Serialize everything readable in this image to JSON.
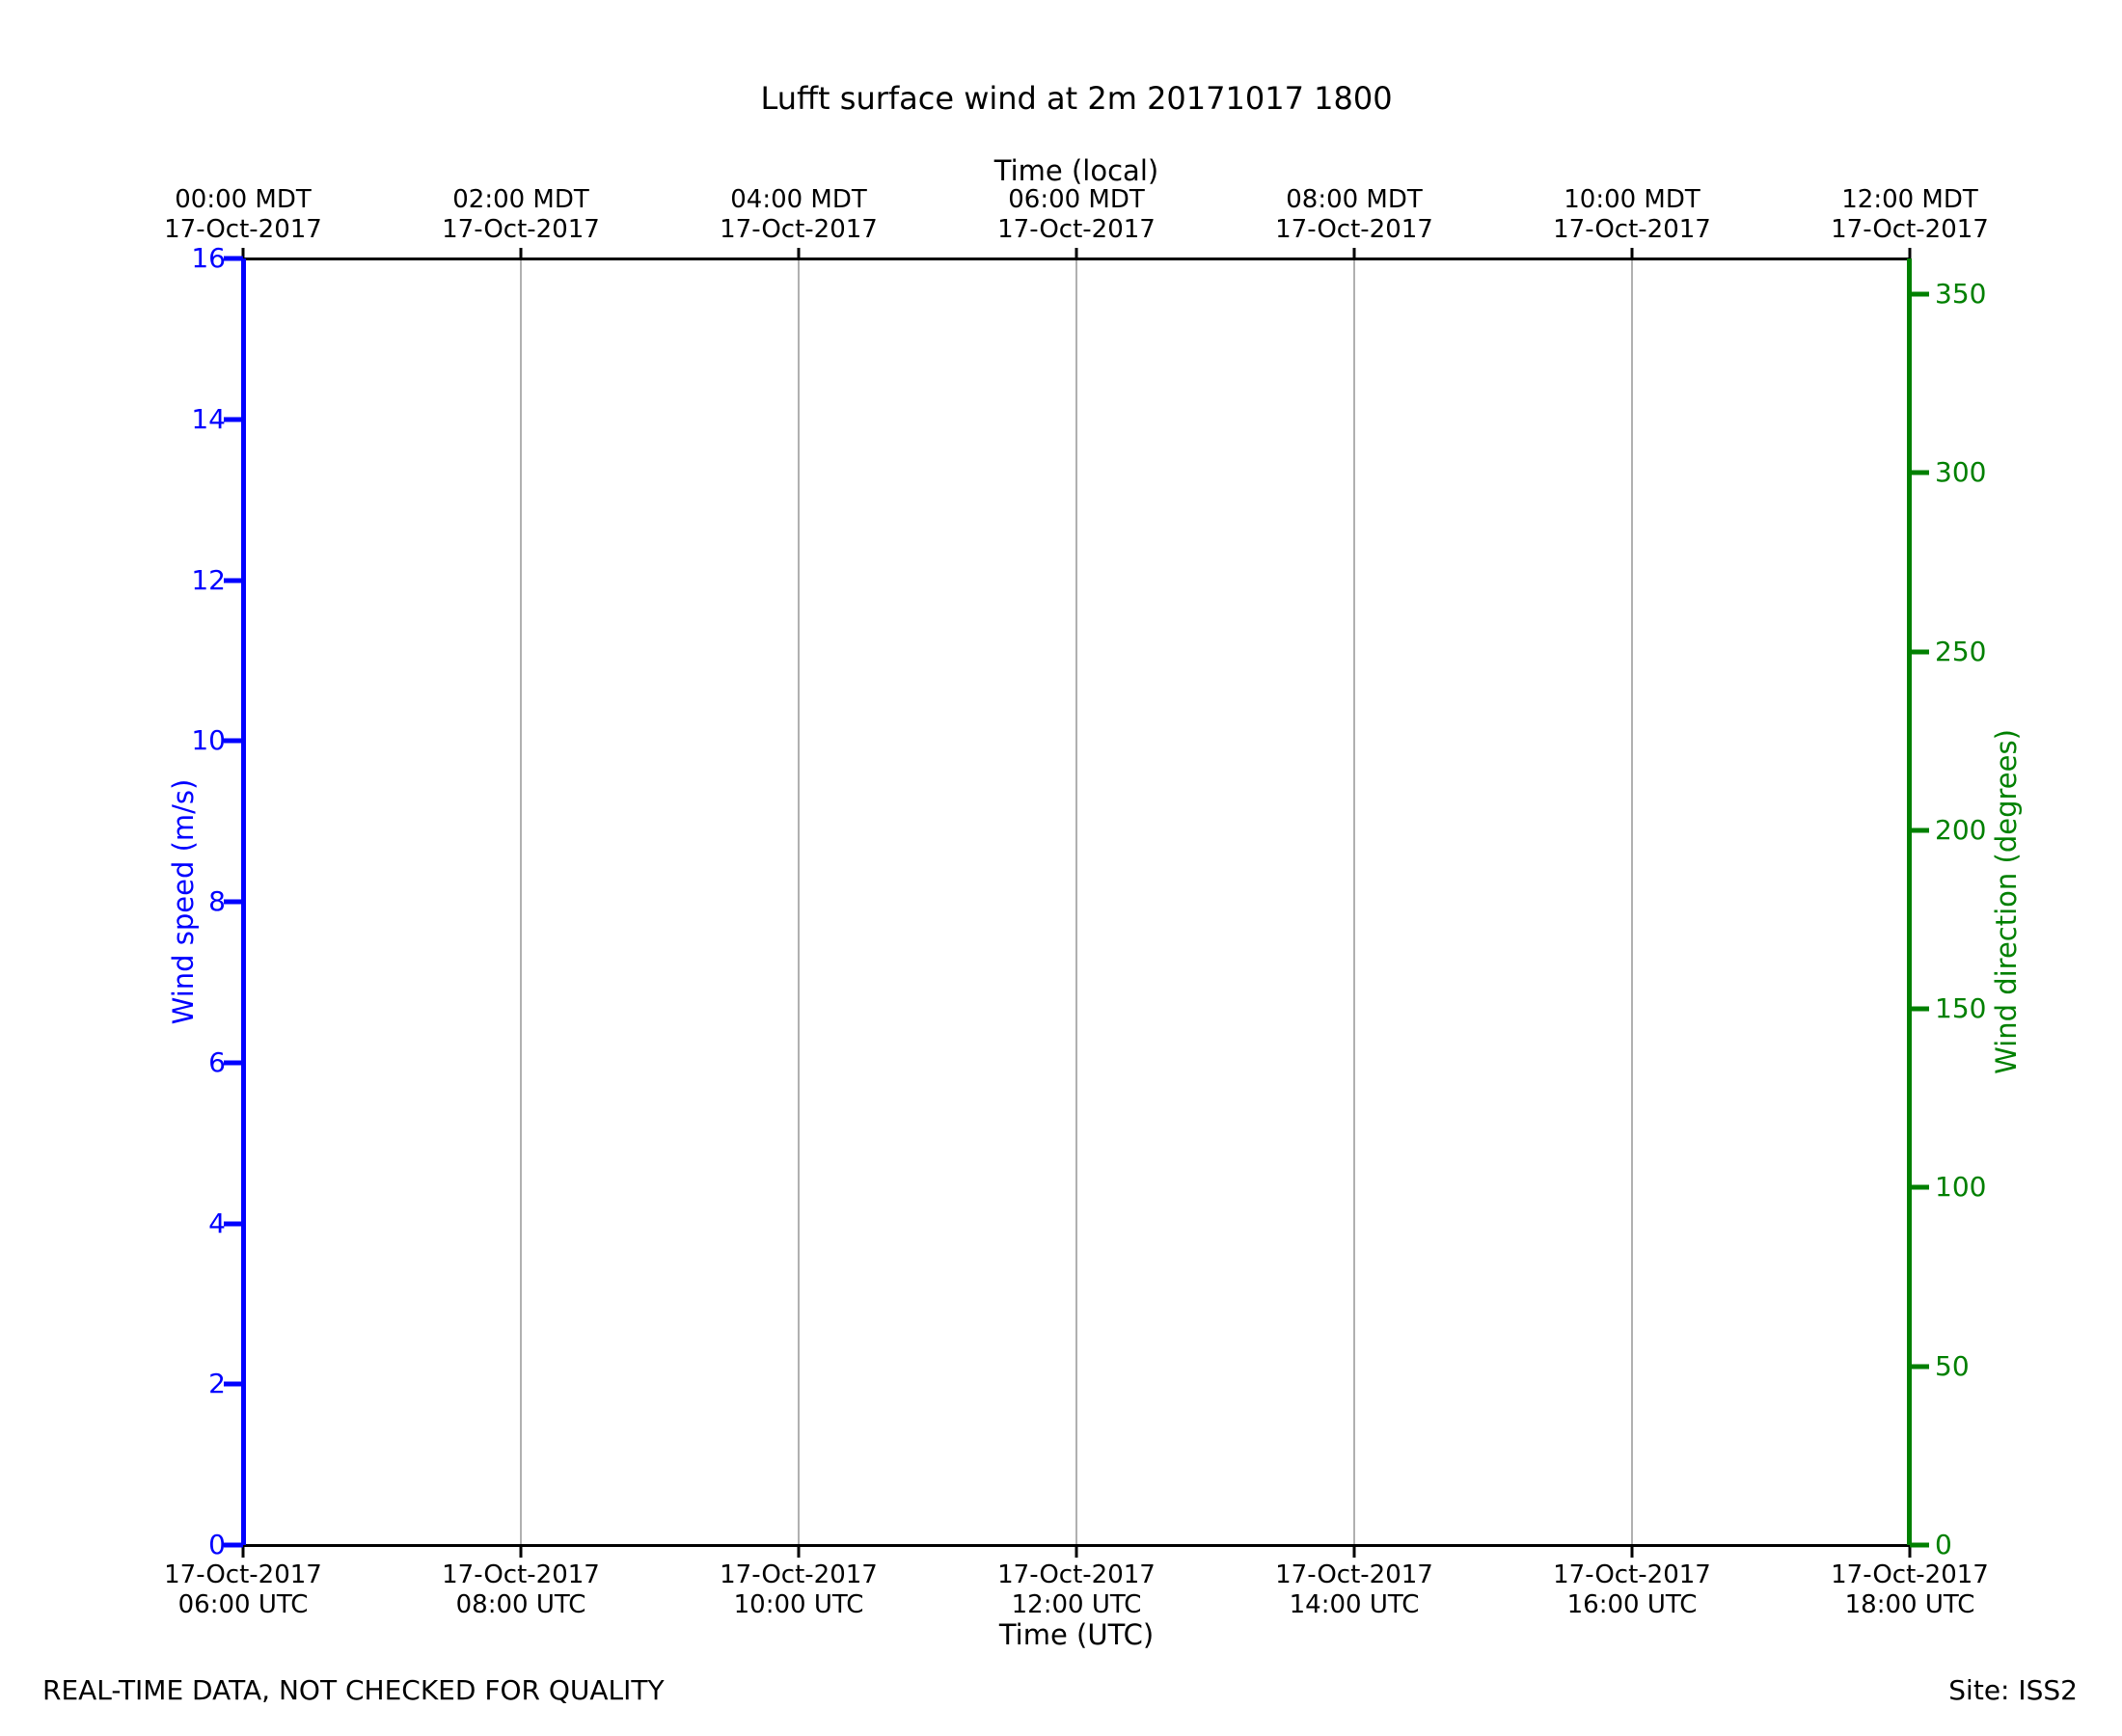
{
  "title": "Lufft surface wind at 2m 20171017 1800",
  "footer": {
    "left": "REAL-TIME DATA, NOT CHECKED FOR QUALITY",
    "right": "Site: ISS2"
  },
  "top_axis": {
    "label": "Time (local)",
    "ticks": [
      {
        "time": "00:00 MDT",
        "date": "17-Oct-2017"
      },
      {
        "time": "02:00 MDT",
        "date": "17-Oct-2017"
      },
      {
        "time": "04:00 MDT",
        "date": "17-Oct-2017"
      },
      {
        "time": "06:00 MDT",
        "date": "17-Oct-2017"
      },
      {
        "time": "08:00 MDT",
        "date": "17-Oct-2017"
      },
      {
        "time": "10:00 MDT",
        "date": "17-Oct-2017"
      },
      {
        "time": "12:00 MDT",
        "date": "17-Oct-2017"
      }
    ]
  },
  "bottom_axis": {
    "label": "Time (UTC)",
    "ticks": [
      {
        "date": "17-Oct-2017",
        "time": "06:00 UTC"
      },
      {
        "date": "17-Oct-2017",
        "time": "08:00 UTC"
      },
      {
        "date": "17-Oct-2017",
        "time": "10:00 UTC"
      },
      {
        "date": "17-Oct-2017",
        "time": "12:00 UTC"
      },
      {
        "date": "17-Oct-2017",
        "time": "14:00 UTC"
      },
      {
        "date": "17-Oct-2017",
        "time": "16:00 UTC"
      },
      {
        "date": "17-Oct-2017",
        "time": "18:00 UTC"
      }
    ]
  },
  "left_axis": {
    "label": "Wind speed (m/s)",
    "color": "#0000ff",
    "min": 0,
    "max": 16,
    "ticks": [
      0,
      2,
      4,
      6,
      8,
      10,
      12,
      14,
      16
    ]
  },
  "right_axis": {
    "label": "Wind direction (degrees)",
    "color": "#008000",
    "min": 0,
    "max": 360,
    "ticks": [
      0,
      50,
      100,
      150,
      200,
      250,
      300,
      350
    ]
  },
  "colors": {
    "speed_accent": "#0000ff",
    "direction_accent": "#008000",
    "grid": "#b0b0b0",
    "axis": "#000000"
  },
  "chart_data": {
    "type": "line",
    "title": "Lufft surface wind at 2m 20171017 1800",
    "xlabel": "Time (UTC)",
    "xlabel_top": "Time (local)",
    "ylabel_left": "Wind speed (m/s)",
    "ylabel_right": "Wind direction (degrees)",
    "x_utc": [
      "06:00",
      "08:00",
      "10:00",
      "12:00",
      "14:00",
      "16:00",
      "18:00"
    ],
    "x_local": [
      "00:00",
      "02:00",
      "04:00",
      "06:00",
      "08:00",
      "10:00",
      "12:00"
    ],
    "x_date": "17-Oct-2017",
    "ylim_left": [
      0,
      16
    ],
    "ylim_right": [
      0,
      360
    ],
    "grid": "vertical-only",
    "legend": "none",
    "series": [
      {
        "name": "Wind speed (m/s)",
        "axis": "left",
        "color": "#0000ff",
        "values": []
      },
      {
        "name": "Wind direction (degrees)",
        "axis": "right",
        "color": "#008000",
        "values": []
      }
    ]
  }
}
